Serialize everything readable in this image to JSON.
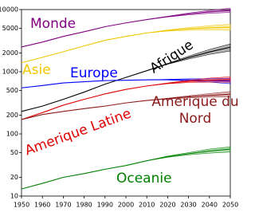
{
  "chart_data": {
    "type": "line",
    "log_scale": true,
    "x": [
      1950,
      1960,
      1970,
      1980,
      1990,
      2000,
      2010,
      2020,
      2030,
      2040,
      2050
    ],
    "xlim": [
      1950,
      2050
    ],
    "xticks": [
      1950,
      1960,
      1970,
      1980,
      1990,
      2000,
      2010,
      2020,
      2030,
      2040,
      2050
    ],
    "ylim": [
      10,
      10000
    ],
    "yticks": [
      10,
      20,
      50,
      100,
      200,
      500,
      1000,
      2000,
      5000,
      10000
    ],
    "series": [
      {
        "name": "Monde",
        "color": "#800080",
        "values": [
          2500,
          3000,
          3700,
          4400,
          5300,
          6100,
          6900,
          7700,
          8500,
          9200,
          9700
        ],
        "low": [
          null,
          null,
          null,
          null,
          null,
          null,
          6900,
          7600,
          8200,
          8700,
          9000
        ],
        "high": [
          null,
          null,
          null,
          null,
          null,
          null,
          6900,
          7800,
          8800,
          9700,
          10500
        ]
      },
      {
        "name": "Asie",
        "color": "#f0c800",
        "values": [
          1400,
          1700,
          2100,
          2600,
          3200,
          3700,
          4200,
          4600,
          4900,
          5100,
          5200
        ],
        "low": [
          null,
          null,
          null,
          null,
          null,
          null,
          4200,
          4500,
          4650,
          4700,
          4650
        ],
        "high": [
          null,
          null,
          null,
          null,
          null,
          null,
          4200,
          4700,
          5150,
          5500,
          5800
        ]
      },
      {
        "name": "Afrique",
        "color": "#000000",
        "values": [
          230,
          280,
          360,
          470,
          630,
          810,
          1040,
          1340,
          1690,
          2080,
          2480
        ],
        "low": [
          null,
          null,
          null,
          null,
          null,
          null,
          1040,
          1320,
          1600,
          1900,
          2150
        ],
        "high": [
          null,
          null,
          null,
          null,
          null,
          null,
          1040,
          1360,
          1780,
          2280,
          2800
        ]
      },
      {
        "name": "Europe",
        "color": "#0000ff",
        "values": [
          550,
          600,
          660,
          690,
          720,
          730,
          740,
          745,
          740,
          725,
          710
        ],
        "low": [
          null,
          null,
          null,
          null,
          null,
          null,
          740,
          735,
          710,
          680,
          640
        ],
        "high": [
          null,
          null,
          null,
          null,
          null,
          null,
          740,
          755,
          770,
          775,
          780
        ]
      },
      {
        "name": "Amerique Latine",
        "color": "#e00000",
        "values": [
          170,
          220,
          290,
          360,
          440,
          520,
          590,
          650,
          700,
          730,
          750
        ],
        "low": [
          null,
          null,
          null,
          null,
          null,
          null,
          590,
          640,
          670,
          680,
          680
        ],
        "high": [
          null,
          null,
          null,
          null,
          null,
          null,
          590,
          660,
          730,
          790,
          830
        ]
      },
      {
        "name": "Amerique du Nord",
        "color": "#8b1a1a",
        "values": [
          170,
          205,
          230,
          255,
          280,
          315,
          345,
          370,
          395,
          415,
          435
        ],
        "low": [
          null,
          null,
          null,
          null,
          null,
          null,
          345,
          365,
          380,
          390,
          395
        ],
        "high": [
          null,
          null,
          null,
          null,
          null,
          null,
          345,
          375,
          410,
          445,
          480
        ]
      },
      {
        "name": "Oceanie",
        "color": "#008000",
        "values": [
          13,
          16,
          20,
          23,
          27,
          31,
          37,
          43,
          48,
          53,
          57
        ],
        "low": [
          null,
          null,
          null,
          null,
          null,
          null,
          37,
          42,
          46,
          49,
          51
        ],
        "high": [
          null,
          null,
          null,
          null,
          null,
          null,
          37,
          44,
          50,
          57,
          62
        ]
      }
    ]
  }
}
